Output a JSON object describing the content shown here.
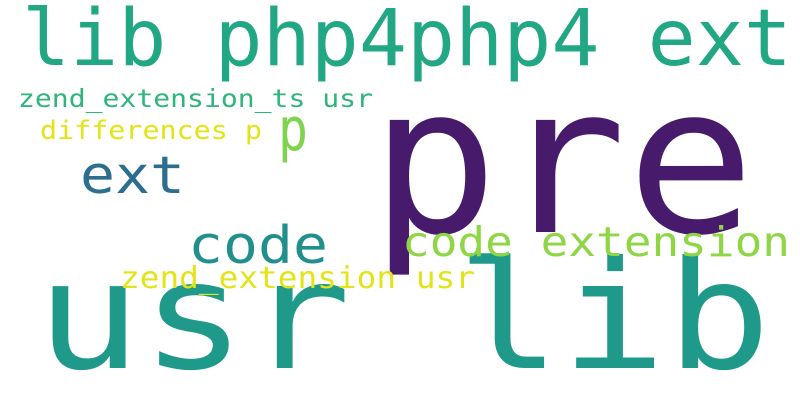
{
  "cloud": {
    "colors": {
      "background": "#ffffff",
      "dark_purple": "#481a6c",
      "teal_dark": "#1f9a8a",
      "teal": "#22a785",
      "blue": "#2c6e8e",
      "sea_green": "#21908d",
      "lime": "#8ed645",
      "green_yellow": "#7fd34e",
      "yellow": "#e2e418",
      "green": "#2fb47c"
    },
    "words": [
      {
        "text": "pre"
      },
      {
        "text": "usr lib"
      },
      {
        "text": "lib php4php4 ext"
      },
      {
        "text": "ext"
      },
      {
        "text": "p"
      },
      {
        "text": "code"
      },
      {
        "text": "code extension"
      },
      {
        "text": "zend_extension usr"
      },
      {
        "text": "zend_extension_ts usr"
      },
      {
        "text": "differences p"
      }
    ]
  }
}
